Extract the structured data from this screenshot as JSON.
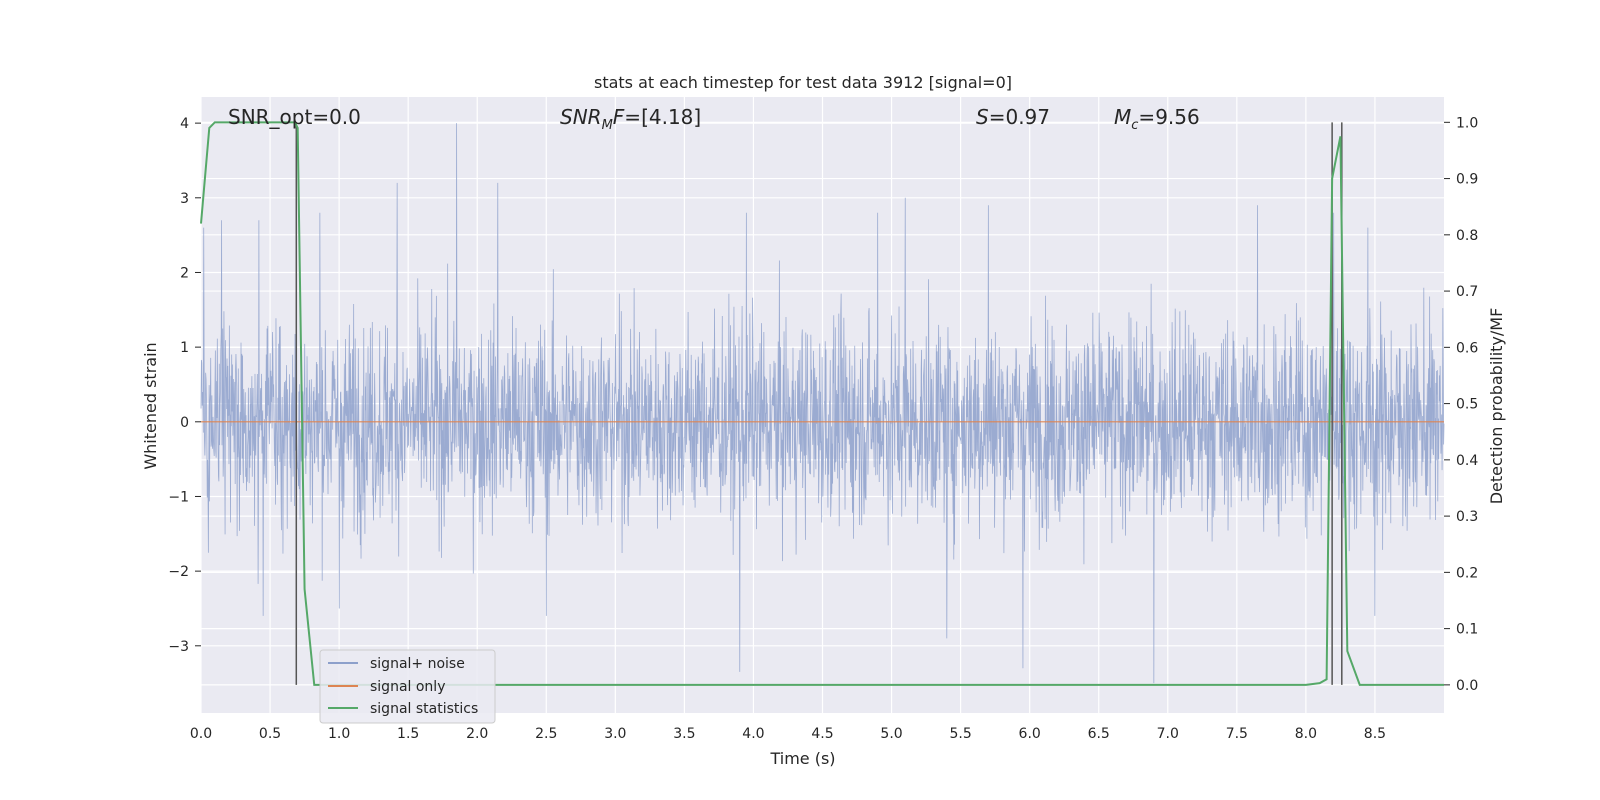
{
  "chart_data": {
    "type": "line",
    "title": "stats at each timestep for test data 3912 [signal=0]",
    "xlabel": "Time (s)",
    "ylabel_left": "Whitened strain",
    "ylabel_right": "Detection probability/MF",
    "xlim": [
      0.0,
      9.0
    ],
    "ylim_left": [
      -3.9,
      4.35
    ],
    "ylim_right": [
      -0.05,
      1.045
    ],
    "grid": true,
    "xticks": [
      "0.0",
      "0.5",
      "1.0",
      "1.5",
      "2.0",
      "2.5",
      "3.0",
      "3.5",
      "4.0",
      "4.5",
      "5.0",
      "5.5",
      "6.0",
      "6.5",
      "7.0",
      "7.5",
      "8.0",
      "8.5"
    ],
    "yticks_left": [
      "4",
      "3",
      "2",
      "1",
      "0",
      "−1",
      "−2",
      "−3"
    ],
    "yticks_right": [
      "1.0",
      "0.9",
      "0.8",
      "0.7",
      "0.6",
      "0.5",
      "0.4",
      "0.3",
      "0.2",
      "0.1",
      "0.0"
    ],
    "annotations": {
      "snr_opt": "SNR_opt=0.0",
      "snr_mf": "[4.18]",
      "s_value": "0.97",
      "mc_value": "9.56"
    },
    "legend": {
      "placement": "lower-left",
      "entries": [
        "signal+ noise",
        "signal only",
        "signal statistics"
      ]
    },
    "colors": {
      "signal_noise": "#8da0cb",
      "signal_only": "#dd8452",
      "signal_statistics": "#55a868",
      "markers": "#555555",
      "plot_bg": "#eaeaf2"
    },
    "series": [
      {
        "name": "signal+ noise",
        "description_of_envelope": "dense noise, samples spanning roughly -3.5 to 4.0",
        "peaks_high": [
          [
            0.02,
            2.6
          ],
          [
            0.15,
            2.7
          ],
          [
            0.42,
            2.7
          ],
          [
            0.86,
            2.8
          ],
          [
            1.42,
            3.2
          ],
          [
            1.85,
            4.0
          ],
          [
            2.15,
            3.2
          ],
          [
            3.95,
            2.8
          ],
          [
            4.9,
            2.8
          ],
          [
            5.1,
            3.0
          ],
          [
            5.7,
            2.9
          ],
          [
            7.65,
            2.9
          ],
          [
            8.2,
            2.8
          ],
          [
            8.45,
            2.6
          ]
        ],
        "peaks_low": [
          [
            0.45,
            -2.6
          ],
          [
            1.0,
            -2.5
          ],
          [
            2.5,
            -2.6
          ],
          [
            3.9,
            -3.35
          ],
          [
            5.4,
            -2.9
          ],
          [
            5.95,
            -3.3
          ],
          [
            6.9,
            -3.55
          ],
          [
            8.5,
            -2.6
          ]
        ]
      },
      {
        "name": "signal only",
        "x": [
          0.0,
          9.0
        ],
        "y": [
          0.0,
          0.0
        ]
      },
      {
        "name": "signal statistics",
        "axis": "right",
        "x": [
          0.0,
          0.06,
          0.1,
          0.2,
          0.3,
          0.5,
          0.68,
          0.7,
          0.75,
          0.82,
          1.0,
          2.0,
          4.0,
          6.0,
          8.0,
          8.1,
          8.15,
          8.19,
          8.25,
          8.3,
          8.39,
          8.5,
          9.0
        ],
        "y": [
          0.82,
          0.99,
          1.0,
          1.0,
          1.0,
          1.0,
          1.0,
          0.99,
          0.17,
          0.0,
          0.0,
          0.0,
          0.0,
          0.0,
          0.0,
          0.003,
          0.01,
          0.9,
          0.975,
          0.06,
          0.0,
          0.0,
          0.0
        ]
      }
    ],
    "vertical_markers_x": [
      0.69,
      8.19,
      8.26
    ]
  }
}
